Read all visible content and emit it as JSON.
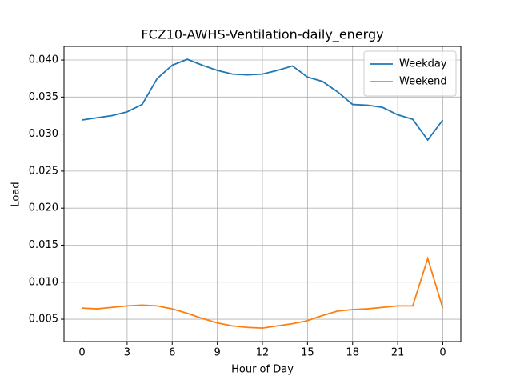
{
  "chart_data": {
    "type": "line",
    "title": "FCZ10-AWHS-Ventilation-daily_energy",
    "x_label": "Hour of Day",
    "y_label": "Load",
    "x": [
      0,
      1,
      2,
      3,
      4,
      5,
      6,
      7,
      8,
      9,
      10,
      11,
      12,
      13,
      14,
      15,
      16,
      17,
      18,
      19,
      20,
      21,
      22,
      23,
      24
    ],
    "series": [
      {
        "name": "Weekday",
        "color": "#1f77b4",
        "values": [
          0.0319,
          0.0322,
          0.0325,
          0.033,
          0.034,
          0.0375,
          0.0393,
          0.0401,
          0.0393,
          0.0386,
          0.0381,
          0.038,
          0.0381,
          0.0386,
          0.0392,
          0.0377,
          0.0371,
          0.0357,
          0.034,
          0.0339,
          0.0336,
          0.0326,
          0.032,
          0.0292,
          0.0319
        ]
      },
      {
        "name": "Weekend",
        "color": "#ff7f0e",
        "values": [
          0.0065,
          0.0064,
          0.0066,
          0.0068,
          0.0069,
          0.0068,
          0.0064,
          0.0058,
          0.0051,
          0.0045,
          0.0041,
          0.0039,
          0.0038,
          0.0041,
          0.0044,
          0.0048,
          0.0055,
          0.0061,
          0.0063,
          0.0064,
          0.0066,
          0.0068,
          0.0068,
          0.0132,
          0.0065
        ]
      }
    ],
    "xlim": [
      -1.2,
      25.2
    ],
    "xticks": [
      0,
      3,
      6,
      9,
      12,
      15,
      18,
      21,
      {
        "value": 24,
        "label": "0"
      }
    ],
    "ylim": [
      0.00198,
      0.04184
    ],
    "yticks": [
      0.005,
      {
        "value": 0.01,
        "label": "0.010"
      },
      0.015,
      {
        "value": 0.02,
        "label": "0.020"
      },
      0.025,
      {
        "value": 0.03,
        "label": "0.030"
      },
      0.035,
      {
        "value": 0.04,
        "label": "0.040"
      }
    ],
    "grid": true,
    "legend": "upper right"
  }
}
